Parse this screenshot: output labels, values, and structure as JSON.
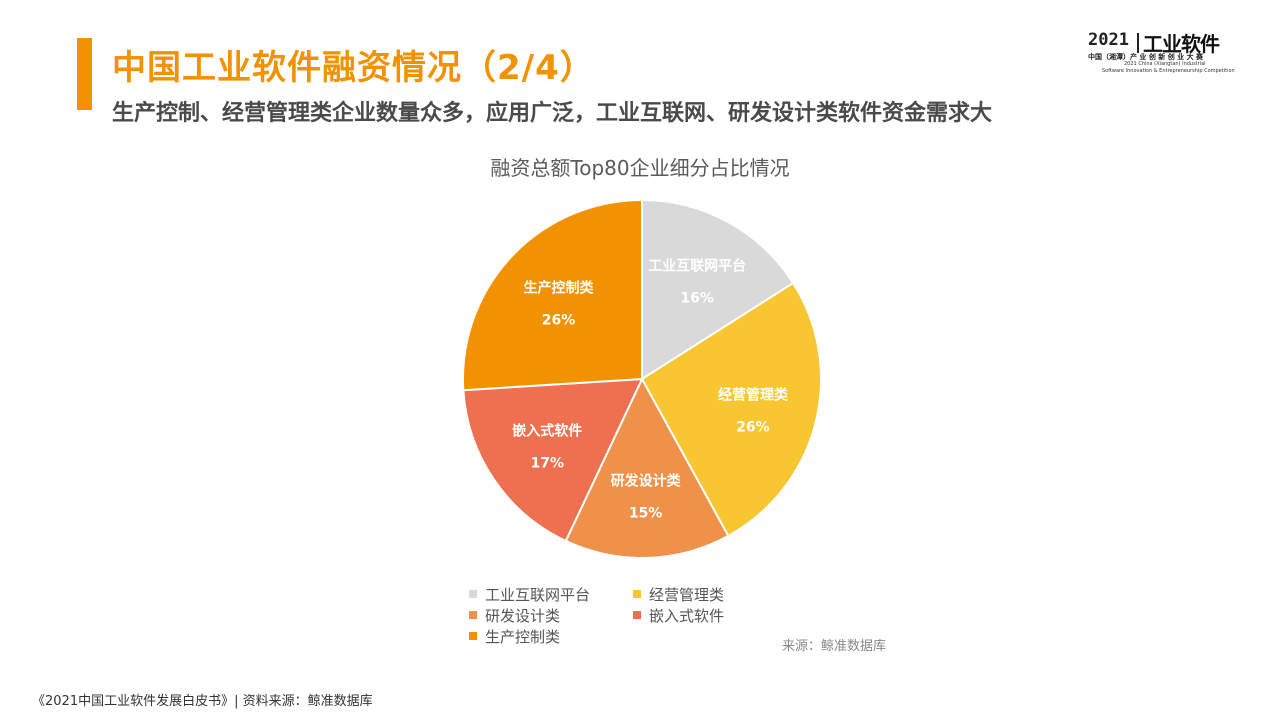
{
  "header": {
    "title": "中国工业软件融资情况（2/4）",
    "subtitle": "生产控制、经营管理类企业数量众多，应用广泛，工业互联网、研发设计类软件资金需求大"
  },
  "logo": {
    "year": "2021",
    "brand": "工业软件",
    "line2": "中国（湘潭）产 业 创 新 创 业 大 赛",
    "line3": "2021 China (Xiangtan) Industrial",
    "line4": "Software Innovation & Entrepreneurship Competition"
  },
  "chart_data": {
    "type": "pie",
    "title": "融资总额Top80企业细分占比情况",
    "categories": [
      "工业互联网平台",
      "经营管理类",
      "研发设计类",
      "嵌入式软件",
      "生产控制类"
    ],
    "values": [
      16,
      26,
      15,
      17,
      26
    ],
    "value_labels": [
      "16%",
      "26%",
      "15%",
      "17%",
      "26%"
    ],
    "colors": [
      "#d9d9d9",
      "#f8c630",
      "#f0914a",
      "#ee7050",
      "#f39200"
    ],
    "start_angle_deg": 0,
    "direction": "clockwise",
    "legend_position": "bottom",
    "source": "来源：鲸准数据库"
  },
  "legend": {
    "items": [
      {
        "label": "工业互联网平台",
        "color": "#d9d9d9"
      },
      {
        "label": "经营管理类",
        "color": "#f8c630"
      },
      {
        "label": "研发设计类",
        "color": "#f0914a"
      },
      {
        "label": "嵌入式软件",
        "color": "#ee7050"
      },
      {
        "label": "生产控制类",
        "color": "#f39200"
      }
    ]
  },
  "footer": {
    "note": "《2021中国工业软件发展白皮书》| 资料来源：鲸准数据库"
  }
}
